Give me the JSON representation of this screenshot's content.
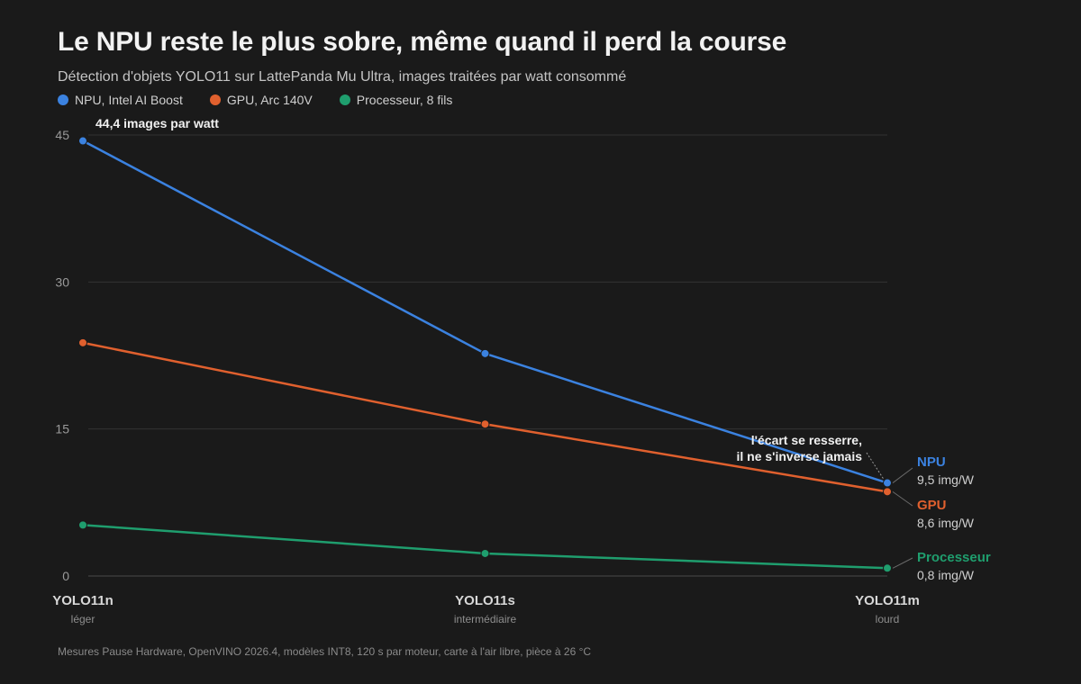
{
  "header": {
    "title": "Le NPU reste le plus sobre, même quand il perd la course",
    "subtitle": "Détection d'objets YOLO11 sur LattePanda Mu Ultra, images traitées par watt consommé"
  },
  "legend": [
    {
      "label": "NPU, Intel AI Boost",
      "color": "#3b82e0"
    },
    {
      "label": "GPU, Arc 140V",
      "color": "#e0602e"
    },
    {
      "label": "Processeur, 8 fils",
      "color": "#1f9e6e"
    }
  ],
  "chart_data": {
    "type": "line",
    "title": "Le NPU reste le plus sobre, même quand il perd la course",
    "subtitle": "Détection d'objets YOLO11 sur LattePanda Mu Ultra, images traitées par watt consommé",
    "categories": [
      "YOLO11n",
      "YOLO11s",
      "YOLO11m"
    ],
    "category_sublabels": [
      "léger",
      "intermédiaire",
      "lourd"
    ],
    "ylim": [
      0,
      45
    ],
    "yticks": [
      0,
      15,
      30,
      45
    ],
    "grid": true,
    "legend_position": "top-left",
    "series": [
      {
        "name": "NPU, Intel AI Boost",
        "end_label": "NPU",
        "end_value_label": "9,5 img/W",
        "color": "#3b82e0",
        "values": [
          44.4,
          22.7,
          9.5
        ]
      },
      {
        "name": "GPU, Arc 140V",
        "end_label": "GPU",
        "end_value_label": "8,6 img/W",
        "color": "#e0602e",
        "values": [
          23.8,
          15.5,
          8.6
        ]
      },
      {
        "name": "Processeur, 8 fils",
        "end_label": "Processeur",
        "end_value_label": "0,8 img/W",
        "color": "#1f9e6e",
        "values": [
          5.2,
          2.3,
          0.8
        ]
      }
    ],
    "annotations": {
      "peak": "44,4 images par watt",
      "gap_line1": "l'écart se resserre,",
      "gap_line2": "il ne s'inverse jamais"
    }
  },
  "footer": {
    "source": "Mesures Pause Hardware, OpenVINO 2026.4, modèles INT8, 120 s par moteur, carte à l'air libre, pièce à 26 °C"
  }
}
